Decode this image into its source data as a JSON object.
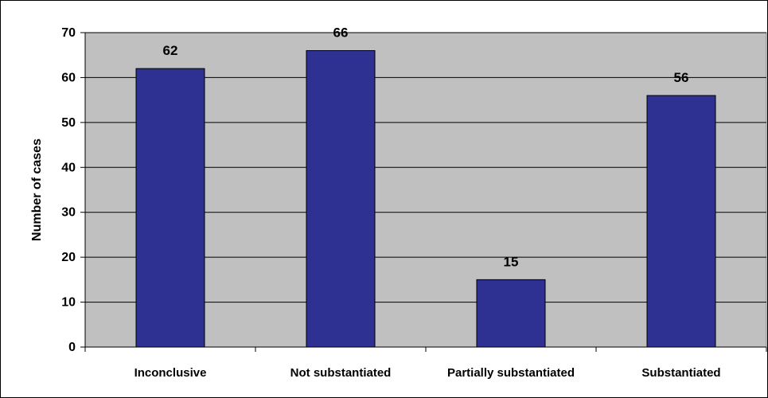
{
  "chart_data": {
    "type": "bar",
    "categories": [
      "Inconclusive",
      "Not substantiated",
      "Partially substantiated",
      "Substantiated"
    ],
    "values": [
      62,
      66,
      15,
      56
    ],
    "data_labels": [
      "62",
      "66",
      "15",
      "56"
    ],
    "title": "",
    "xlabel": "",
    "ylabel": "Number of cases",
    "ylim": [
      0,
      70
    ],
    "yticks": [
      0,
      10,
      20,
      30,
      40,
      50,
      60,
      70
    ],
    "grid": true,
    "legend": "none",
    "colors": {
      "bar": "#2E3192",
      "plot_background": "#C0C0C0",
      "gridline": "#000000"
    }
  }
}
